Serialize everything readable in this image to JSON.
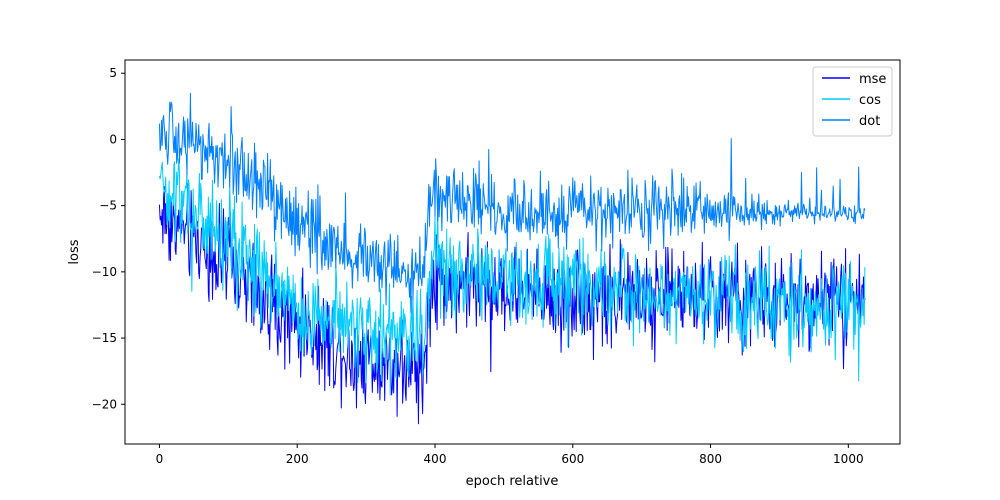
{
  "chart_data": {
    "type": "line",
    "xlabel": "epoch relative",
    "ylabel": "loss",
    "xlim": [
      -50,
      1075
    ],
    "ylim": [
      -23.0,
      6.0
    ],
    "xticks": [
      0,
      200,
      400,
      600,
      800,
      1000
    ],
    "yticks": [
      5,
      0,
      -5,
      -10,
      -15,
      -20
    ],
    "grid": false,
    "legend_position": "top-right",
    "n_points": 1025,
    "series": [
      {
        "name": "mse",
        "color": "#0000ff",
        "anchors_x": [
          0,
          50,
          100,
          150,
          200,
          250,
          300,
          350,
          385,
          395,
          450,
          500,
          550,
          600,
          650,
          700,
          750,
          800,
          850,
          900,
          950,
          1000,
          1024
        ],
        "anchors_y": [
          -5.5,
          -7.5,
          -9.5,
          -12.0,
          -14.0,
          -15.5,
          -16.5,
          -16.8,
          -17.0,
          -10.5,
          -11.0,
          -11.5,
          -11.5,
          -11.8,
          -11.8,
          -11.8,
          -11.5,
          -11.8,
          -12.0,
          -12.2,
          -12.0,
          -11.8,
          -11.5
        ],
        "noise": 2.6,
        "spike": -4.0
      },
      {
        "name": "cos",
        "color": "#00ccff",
        "anchors_x": [
          0,
          50,
          100,
          150,
          200,
          250,
          300,
          350,
          385,
          395,
          450,
          500,
          550,
          600,
          650,
          700,
          750,
          800,
          850,
          900,
          950,
          1000,
          1024
        ],
        "anchors_y": [
          -3.5,
          -5.5,
          -7.5,
          -10.5,
          -12.5,
          -13.5,
          -14.5,
          -15.0,
          -15.0,
          -9.0,
          -10.0,
          -10.5,
          -10.8,
          -11.0,
          -11.2,
          -11.5,
          -11.5,
          -11.8,
          -12.0,
          -12.2,
          -12.3,
          -12.5,
          -12.5
        ],
        "noise": 2.6,
        "spike": -4.0
      },
      {
        "name": "dot",
        "color": "#0080ff",
        "anchors_x": [
          0,
          50,
          100,
          150,
          200,
          250,
          300,
          350,
          385,
          392,
          450,
          500,
          550,
          600,
          650,
          700,
          750,
          800,
          850,
          900,
          950,
          1000,
          1024
        ],
        "anchors_y": [
          0.5,
          -0.5,
          -1.5,
          -3.5,
          -6.5,
          -8.0,
          -9.5,
          -10.0,
          -10.0,
          -4.0,
          -5.0,
          -5.5,
          -5.5,
          -5.5,
          -5.5,
          -5.5,
          -5.3,
          -5.4,
          -5.5,
          -5.6,
          -5.6,
          -5.6,
          -5.6
        ],
        "noise": 2.0,
        "spike": 4.0
      }
    ]
  }
}
